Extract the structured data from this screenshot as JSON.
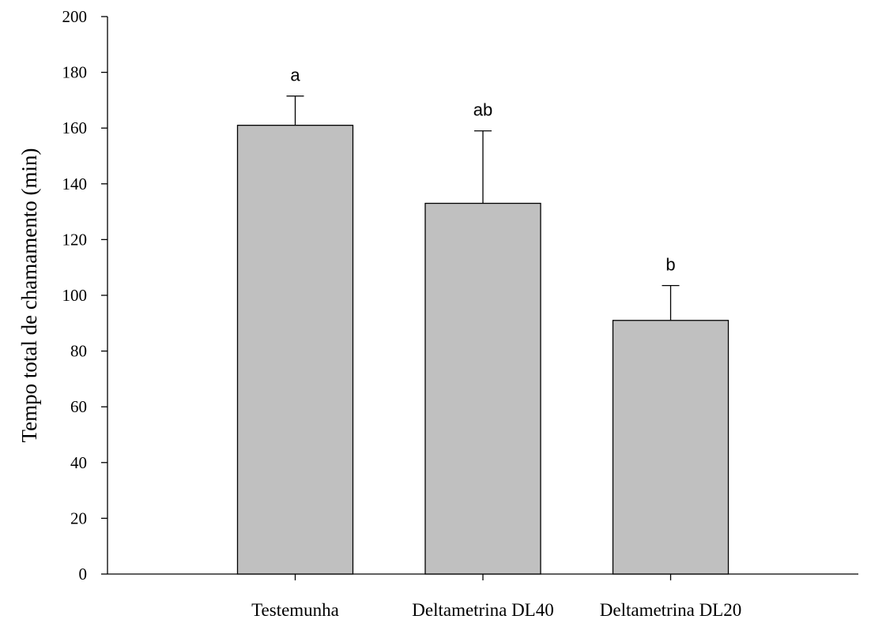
{
  "chart_data": {
    "type": "bar",
    "title": "",
    "xlabel": "",
    "ylabel": "Tempo total de chamamento (min)",
    "ylim": [
      0,
      200
    ],
    "yticks": [
      0,
      20,
      40,
      60,
      80,
      100,
      120,
      140,
      160,
      180,
      200
    ],
    "grid": false,
    "categories": [
      "Testemunha",
      "Deltametrina DL40",
      "Deltametrina DL20"
    ],
    "values": [
      161,
      133,
      91
    ],
    "error_upper": [
      10.5,
      26,
      12.5
    ],
    "significance_labels": [
      "a",
      "ab",
      "b"
    ],
    "bar_color": "#c0c0c0"
  }
}
